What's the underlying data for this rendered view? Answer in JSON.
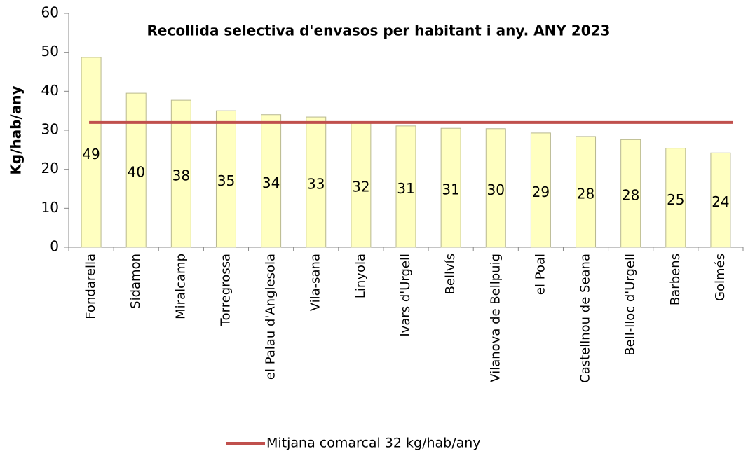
{
  "chart_data": {
    "type": "bar",
    "title": "Recollida selectiva d'envasos per habitant i any. ANY 2023",
    "y_label": "Kg/hab/any",
    "categories": [
      "Fondarella",
      "Sidamon",
      "Miralcamp",
      "Torregrossa",
      "el Palau d'Anglesola",
      "Vila-sana",
      "Linyola",
      "Ivars d'Urgell",
      "Bellvís",
      "Vilanova de Bellpuig",
      "el Poal",
      "Castellnou de Seana",
      "Bell-lloc d'Urgell",
      "Barbens",
      "Golmés"
    ],
    "values": [
      48.7,
      39.5,
      37.7,
      35.0,
      34.0,
      33.4,
      32.0,
      31.1,
      30.5,
      30.4,
      29.3,
      28.4,
      27.6,
      25.4,
      24.2
    ],
    "value_labels": [
      "49",
      "40",
      "38",
      "35",
      "34",
      "33",
      "32",
      "31",
      "31",
      "30",
      "29",
      "28",
      "28",
      "25",
      "24"
    ],
    "color": "#ffffc0",
    "line_series": {
      "name": "Mitjana comarcal 32 kg/hab/any",
      "color": "#c0504d",
      "values": [
        32,
        32,
        32,
        32,
        32,
        32,
        32,
        32,
        32,
        32,
        32,
        32,
        32,
        32,
        32
      ]
    },
    "ylim": [
      0,
      60
    ],
    "yticks": [
      0,
      10,
      20,
      30,
      40,
      50,
      60
    ],
    "legend": "bottom"
  }
}
